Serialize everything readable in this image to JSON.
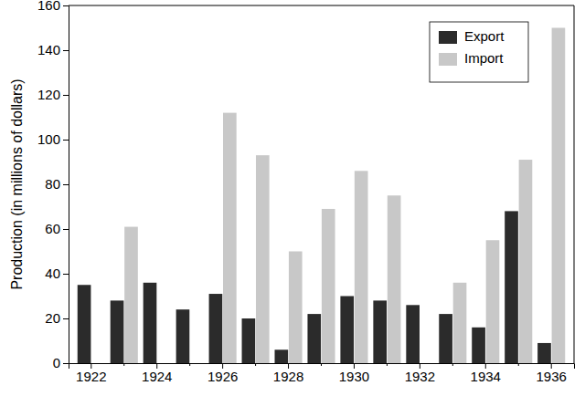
{
  "chart_data": {
    "type": "bar",
    "y_label": "Production (in millions of dollars)",
    "categories": [
      "1922",
      null,
      "1924",
      null,
      "1926",
      null,
      "1928",
      null,
      "1930",
      null,
      "1932",
      null,
      "1934",
      null,
      "1936"
    ],
    "series": [
      {
        "name": "Export",
        "color": "#2b2b2b",
        "values": [
          35,
          28,
          36,
          24,
          31,
          20,
          6,
          22,
          30,
          28,
          26,
          22,
          16,
          68,
          9
        ]
      },
      {
        "name": "Import",
        "color": "#c8c8c8",
        "values": [
          null,
          61,
          null,
          null,
          112,
          93,
          50,
          69,
          86,
          75,
          null,
          36,
          55,
          91,
          150
        ]
      }
    ],
    "ylim": [
      0,
      160
    ],
    "yticks": [
      0,
      20,
      40,
      60,
      80,
      100,
      120,
      140,
      160
    ],
    "grid": false,
    "legend": "upper right"
  }
}
